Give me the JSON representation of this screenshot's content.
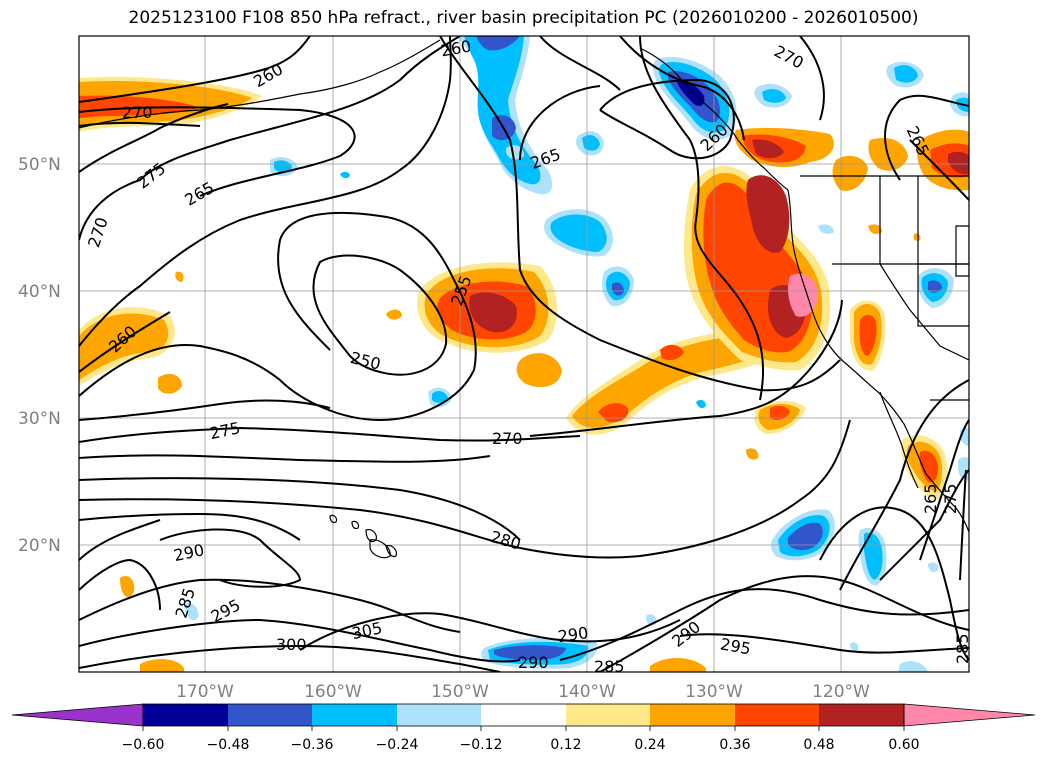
{
  "title": "2025123100 F108 850 hPa refract., river basin precipitation PC (2026010200 - 2026010500)",
  "colors": {
    "neg_extreme": "#9933cc",
    "neg_060": "#000099",
    "neg_048": "#3355cc",
    "neg_036": "#00bfff",
    "neg_024": "#aee2fb",
    "neutral": "#ffffff",
    "pos_012": "#ffe88a",
    "pos_024": "#ffa500",
    "pos_036": "#ff4500",
    "pos_048": "#b22222",
    "pos_extreme": "#ff88aa",
    "contour": "#000000",
    "grid": "#999999"
  },
  "lat_labels": [
    "50°N",
    "40°N",
    "30°N",
    "20°N"
  ],
  "lon_labels": [
    "170°W",
    "160°W",
    "150°W",
    "140°W",
    "130°W",
    "120°W"
  ],
  "colorbar_ticks": [
    "−0.60",
    "−0.48",
    "−0.36",
    "−0.24",
    "−0.12",
    "0.12",
    "0.24",
    "0.36",
    "0.48",
    "0.60"
  ],
  "contour_labels": [
    {
      "text": "260"
    },
    {
      "text": "270"
    },
    {
      "text": "275"
    },
    {
      "text": "270"
    },
    {
      "text": "265"
    },
    {
      "text": "260"
    },
    {
      "text": "260"
    },
    {
      "text": "265"
    },
    {
      "text": "255"
    },
    {
      "text": "250"
    },
    {
      "text": "275"
    },
    {
      "text": "270"
    },
    {
      "text": "290"
    },
    {
      "text": "280"
    },
    {
      "text": "285"
    },
    {
      "text": "295"
    },
    {
      "text": "300"
    },
    {
      "text": "305"
    },
    {
      "text": "290"
    },
    {
      "text": "290"
    },
    {
      "text": "285"
    },
    {
      "text": "290"
    },
    {
      "text": "295"
    },
    {
      "text": "270"
    },
    {
      "text": "260"
    },
    {
      "text": "265"
    },
    {
      "text": "265"
    },
    {
      "text": "275"
    },
    {
      "text": "285"
    }
  ]
}
